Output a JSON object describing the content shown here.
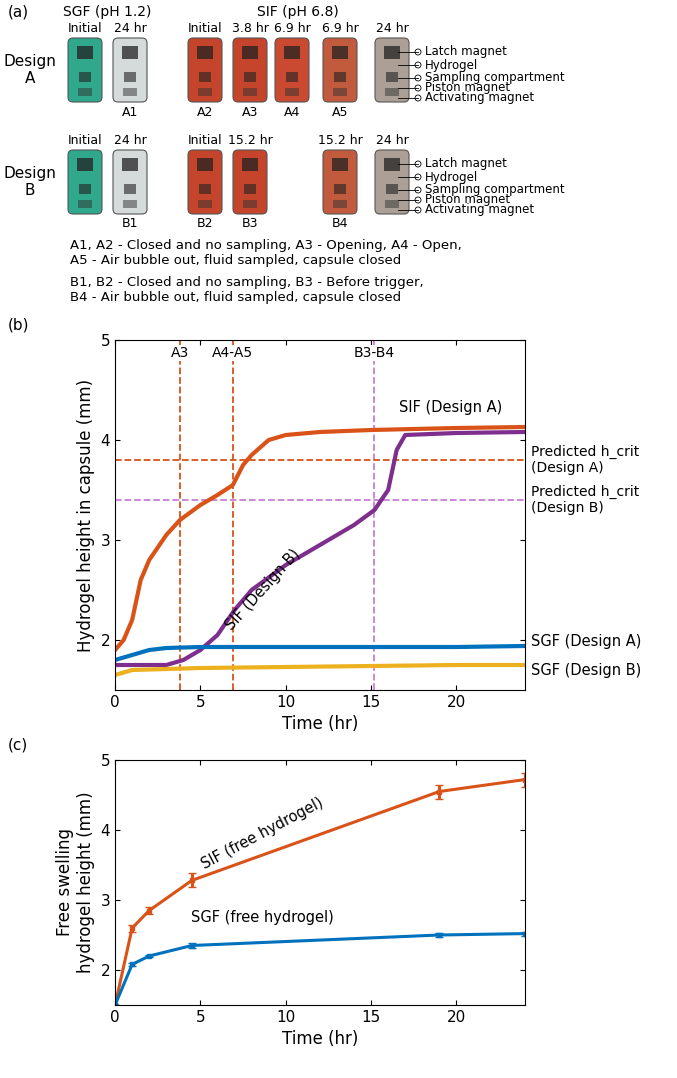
{
  "panel_a": {
    "label": "(a)",
    "headers": [
      {
        "text": "SGF (pH 1.2)"
      },
      {
        "text": "SIF (pH 6.8)"
      }
    ],
    "rows": [
      {
        "design": "Design\nA",
        "capsules": [
          {
            "time": "Initial",
            "color": "#2fa88c"
          },
          {
            "time": "24 hr",
            "color": "#d5dadb",
            "id": "A1"
          },
          {
            "time": "Initial",
            "color": "#c4452c",
            "id": "A2"
          },
          {
            "time": "3.8 hr",
            "color": "#c4452c",
            "id": "A3"
          },
          {
            "time": "6.9 hr",
            "color": "#c94a30",
            "id": "A4"
          },
          {
            "time": "6.9 hr",
            "color": "#c25a3e",
            "id": "A5"
          },
          {
            "time": "24 hr",
            "color": "#aca096"
          }
        ]
      },
      {
        "design": "Design\nB",
        "capsules": [
          {
            "time": "Initial",
            "color": "#2fa88c"
          },
          {
            "time": "24 hr",
            "color": "#d5dadb",
            "id": "B1"
          },
          {
            "time": "Initial",
            "color": "#c4452c",
            "id": "B2"
          },
          {
            "time": "15.2 hr",
            "color": "#c4452c",
            "id": "B3"
          },
          {
            "time": "15.2 hr",
            "color": "#c25a3e",
            "id": "B4"
          },
          {
            "time": "24 hr",
            "color": "#aca096"
          }
        ]
      }
    ],
    "parts": [
      "Latch magnet",
      "Hydrogel",
      "Sampling compartment",
      "Piston magnet",
      "Activating magnet"
    ],
    "captions": [
      "A1, A2 - Closed and no sampling, A3 - Opening, A4 - Open,",
      "A5 - Air bubble out, fluid sampled, capsule closed",
      "B1, B2 - Closed and no sampling, B3 - Before trigger,",
      "B4 - Air bubble out, fluid sampled, capsule closed"
    ]
  },
  "chart_data": [
    {
      "type": "line",
      "panel": "(b)",
      "x_label": "Time (hr)",
      "y_label": "Hydrogel height in capsule (mm)",
      "xlim": [
        0,
        24
      ],
      "xticks": [
        0,
        5,
        10,
        15,
        20
      ],
      "ylim": [
        1.5,
        5
      ],
      "yticks": [
        2,
        3,
        4,
        5
      ],
      "series": [
        {
          "name": "SIF (Design A)",
          "color": "#d95319",
          "x": [
            0,
            0.5,
            1,
            1.5,
            2,
            3,
            3.8,
            5,
            6,
            6.9,
            7.5,
            8,
            9,
            10,
            12,
            15,
            20,
            24
          ],
          "values": [
            1.9,
            2.0,
            2.2,
            2.6,
            2.8,
            3.05,
            3.2,
            3.35,
            3.45,
            3.55,
            3.75,
            3.85,
            4.0,
            4.05,
            4.08,
            4.1,
            4.12,
            4.13
          ]
        },
        {
          "name": "SIF (Design B)",
          "color": "#7e2f8e",
          "x": [
            0,
            3,
            4,
            5,
            6,
            7,
            8,
            10,
            12,
            14,
            15.2,
            16,
            16.5,
            17,
            20,
            24
          ],
          "values": [
            1.75,
            1.75,
            1.8,
            1.9,
            2.05,
            2.3,
            2.5,
            2.75,
            2.95,
            3.15,
            3.3,
            3.5,
            3.9,
            4.05,
            4.07,
            4.08
          ]
        },
        {
          "name": "SGF (Design A)",
          "color": "#0072bd",
          "x": [
            0,
            1,
            2,
            3,
            5,
            10,
            15,
            20,
            24
          ],
          "values": [
            1.8,
            1.85,
            1.9,
            1.92,
            1.93,
            1.93,
            1.93,
            1.93,
            1.94
          ]
        },
        {
          "name": "SGF (Design B)",
          "color": "#edb120",
          "x": [
            0,
            1,
            5,
            10,
            15,
            20,
            24
          ],
          "values": [
            1.65,
            1.7,
            1.72,
            1.73,
            1.74,
            1.75,
            1.75
          ]
        }
      ],
      "vlines": [
        {
          "x": 3.8,
          "label": "A3",
          "color": "#d95319"
        },
        {
          "x": 6.9,
          "label": "A4-A5",
          "color": "#d95319"
        },
        {
          "x": 15.2,
          "label": "B3-B4",
          "color": "#c77fd6"
        }
      ],
      "hlines": [
        {
          "y": 3.8,
          "label": "Predicted h_crit\n(Design A)",
          "color": "#d95319"
        },
        {
          "y": 3.4,
          "label": "Predicted h_crit\n(Design B)",
          "color": "#c77fd6"
        }
      ]
    },
    {
      "type": "line",
      "panel": "(c)",
      "x_label": "Time (hr)",
      "y_label": "Free swelling\nhydrogel height (mm)",
      "xlim": [
        0,
        24
      ],
      "xticks": [
        0,
        5,
        10,
        15,
        20
      ],
      "ylim": [
        1.5,
        5
      ],
      "yticks": [
        2,
        3,
        4,
        5
      ],
      "series": [
        {
          "name": "SIF (free hydrogel)",
          "color": "#d95319",
          "marker": "s",
          "x": [
            0,
            1,
            2,
            4.5,
            19,
            24
          ],
          "values": [
            1.5,
            2.6,
            2.85,
            3.28,
            4.55,
            4.72
          ],
          "errors": [
            0,
            0.05,
            0.05,
            0.1,
            0.1,
            0.1
          ]
        },
        {
          "name": "SGF (free hydrogel)",
          "color": "#0072bd",
          "marker": "s",
          "x": [
            0,
            1,
            2,
            4.5,
            19,
            24
          ],
          "values": [
            1.5,
            2.08,
            2.2,
            2.35,
            2.5,
            2.52
          ],
          "errors": [
            0,
            0.02,
            0.02,
            0.03,
            0.03,
            0.03
          ]
        }
      ]
    }
  ]
}
